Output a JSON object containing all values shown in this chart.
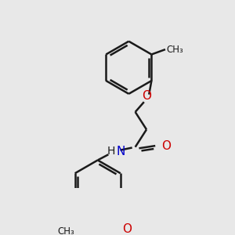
{
  "background_color": "#e8e8e8",
  "bond_color": "#1a1a1a",
  "O_color": "#cc0000",
  "N_color": "#0000cc",
  "line_width": 1.8,
  "font_size": 10,
  "figsize": [
    3.0,
    3.0
  ],
  "dpi": 100,
  "xlim": [
    0,
    300
  ],
  "ylim": [
    0,
    300
  ]
}
